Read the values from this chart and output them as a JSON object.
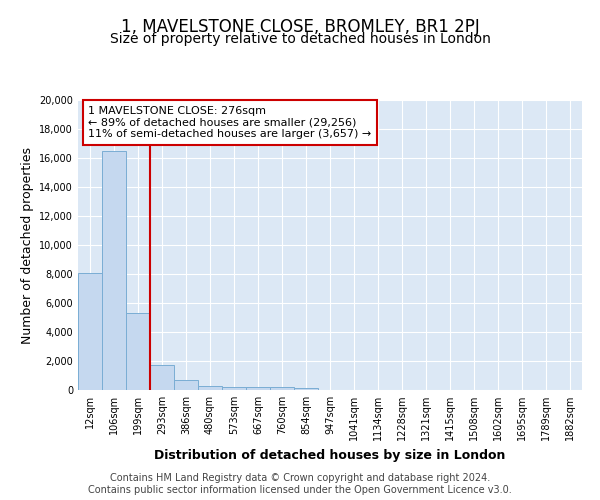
{
  "title": "1, MAVELSTONE CLOSE, BROMLEY, BR1 2PJ",
  "subtitle": "Size of property relative to detached houses in London",
  "xlabel": "Distribution of detached houses by size in London",
  "ylabel": "Number of detached properties",
  "categories": [
    "12sqm",
    "106sqm",
    "199sqm",
    "293sqm",
    "386sqm",
    "480sqm",
    "573sqm",
    "667sqm",
    "760sqm",
    "854sqm",
    "947sqm",
    "1041sqm",
    "1134sqm",
    "1228sqm",
    "1321sqm",
    "1415sqm",
    "1508sqm",
    "1602sqm",
    "1695sqm",
    "1789sqm",
    "1882sqm"
  ],
  "values": [
    8100,
    16500,
    5300,
    1750,
    700,
    310,
    230,
    210,
    190,
    160,
    0,
    0,
    0,
    0,
    0,
    0,
    0,
    0,
    0,
    0,
    0
  ],
  "bar_color": "#c5d8ef",
  "bar_edge_color": "#7aadd4",
  "vline_x": 2.5,
  "vline_color": "#cc0000",
  "annotation_text": "1 MAVELSTONE CLOSE: 276sqm\n← 89% of detached houses are smaller (29,256)\n11% of semi-detached houses are larger (3,657) →",
  "annotation_box_color": "#ffffff",
  "annotation_box_edge": "#cc0000",
  "background_color": "#dce8f5",
  "footer": "Contains HM Land Registry data © Crown copyright and database right 2024.\nContains public sector information licensed under the Open Government Licence v3.0.",
  "ylim": [
    0,
    20000
  ],
  "yticks": [
    0,
    2000,
    4000,
    6000,
    8000,
    10000,
    12000,
    14000,
    16000,
    18000,
    20000
  ],
  "title_fontsize": 12,
  "subtitle_fontsize": 10,
  "axis_label_fontsize": 9,
  "tick_fontsize": 7,
  "footer_fontsize": 7,
  "annot_fontsize": 8
}
